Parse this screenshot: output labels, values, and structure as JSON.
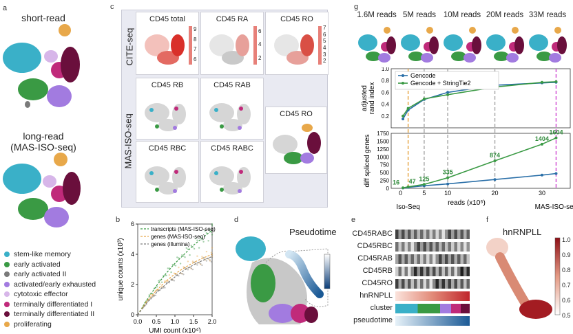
{
  "panels": {
    "a": "a",
    "b": "b",
    "c": "c",
    "d": "d",
    "e": "e",
    "f": "f",
    "g": "g"
  },
  "a": {
    "title_short": "short-read",
    "title_long_1": "long-read",
    "title_long_2": "(MAS-ISO-seq)",
    "legend": [
      {
        "label": "stem-like memory",
        "color": "#3ab0c8"
      },
      {
        "label": "early activated",
        "color": "#3a9a44"
      },
      {
        "label": "early activated II",
        "color": "#7a7a7a"
      },
      {
        "label": "activated/early exhausted",
        "color": "#a27be0"
      },
      {
        "label": "cytotoxic effector",
        "color": "#d7b6e9"
      },
      {
        "label": "terminally differentiated I",
        "color": "#c02a7a"
      },
      {
        "label": "terminally differentiated II",
        "color": "#6a0f3c"
      },
      {
        "label": "proliferating",
        "color": "#e8a84a"
      }
    ]
  },
  "c": {
    "cite_label": "CITE-seq",
    "mas_label": "MAS-ISO-seq",
    "cite": [
      {
        "title": "CD45 total",
        "ticks": [
          "9",
          "8",
          "7",
          "6"
        ]
      },
      {
        "title": "CD45 RA",
        "ticks": [
          "6",
          "4",
          "2"
        ]
      },
      {
        "title": "CD45 RO",
        "ticks": [
          "7",
          "6",
          "5",
          "4",
          "3",
          "2"
        ]
      }
    ],
    "mas": [
      "CD45 RB",
      "CD45 RAB",
      "CD45 RBC",
      "CD45 RABC"
    ],
    "mas_ro": "CD45 RO"
  },
  "b": {
    "legend": [
      "transcripts (MAS-ISO-seq)",
      "genes (MAS-ISO-seq)",
      "genes (illumina)"
    ],
    "xlabel": "UMI count (x10⁴)",
    "ylabel": "unique counts (x10³)"
  },
  "d": {
    "title": "Pseudotime"
  },
  "e": {
    "rows": [
      "CD45RABC",
      "CD45RBC",
      "CD45RAB",
      "CD45RB",
      "CD45RO",
      "hnRNPLL",
      "cluster",
      "pseudotime"
    ]
  },
  "f": {
    "title": "hnRNPLL",
    "ticks": [
      "1.0",
      "0.9",
      "0.8",
      "0.7",
      "0.6",
      "0.5"
    ]
  },
  "g": {
    "reads": [
      "1.6M reads",
      "5M reads",
      "10M reads",
      "20M reads",
      "33M reads"
    ],
    "legend": [
      "Gencode",
      "Gencode + StringTie2"
    ],
    "ylabel_top_1": "adjusted",
    "ylabel_top_2": "rand index",
    "ylabel_bottom": "diff spliced genes",
    "xlabel": "reads (x10⁶)",
    "iso_seq": "Iso-Seq",
    "mas_iso_seq": "MAS-ISO-seq"
  },
  "chart_data": [
    {
      "type": "line",
      "title": "",
      "xlabel": "UMI count (x10⁴)",
      "ylabel": "unique counts (x10³)",
      "xlim": [
        0,
        2.0
      ],
      "ylim": [
        0,
        6
      ],
      "x": [
        0,
        0.25,
        0.5,
        0.75,
        1.0,
        1.25,
        1.5,
        1.75,
        2.0
      ],
      "series": [
        {
          "name": "transcripts (MAS-ISO-seq)",
          "values": [
            0,
            1.0,
            1.9,
            2.7,
            3.4,
            4.0,
            4.6,
            5.1,
            5.6
          ]
        },
        {
          "name": "genes (MAS-ISO-seq)",
          "values": [
            0,
            0.9,
            1.6,
            2.2,
            2.7,
            3.1,
            3.45,
            3.75,
            4.0
          ]
        },
        {
          "name": "genes (illumina)",
          "values": [
            0,
            0.8,
            1.45,
            2.0,
            2.5,
            2.95,
            3.3,
            3.6,
            3.85
          ]
        }
      ],
      "xticks": [
        "0.0",
        "0.5",
        "1.0",
        "1.5",
        "2.0"
      ],
      "yticks": [
        "0",
        "2",
        "4",
        "6"
      ]
    },
    {
      "type": "line",
      "title": "adjusted rand index",
      "xlabel": "reads (x10⁶)",
      "ylabel": "adjusted rand index",
      "xlim": [
        -2,
        36
      ],
      "ylim": [
        0,
        1.0
      ],
      "x": [
        0.5,
        1.6,
        5,
        10,
        20,
        30,
        33
      ],
      "series": [
        {
          "name": "Gencode",
          "values": [
            0.15,
            0.3,
            0.48,
            0.6,
            0.72,
            0.76,
            0.77
          ]
        },
        {
          "name": "Gencode + StringTie2",
          "values": [
            0.2,
            0.33,
            0.49,
            0.56,
            0.69,
            0.77,
            0.78
          ]
        }
      ],
      "yticks": [
        "0.2",
        "0.4",
        "0.6",
        "0.8",
        "1.0"
      ]
    },
    {
      "type": "line",
      "title": "diff spliced genes",
      "xlabel": "reads (x10⁶)",
      "ylabel": "diff spliced genes",
      "xlim": [
        -2,
        36
      ],
      "ylim": [
        0,
        1750
      ],
      "x": [
        0.5,
        1.6,
        5,
        10,
        20,
        30,
        33
      ],
      "series": [
        {
          "name": "Gencode",
          "values": [
            10,
            30,
            80,
            140,
            280,
            420,
            470
          ]
        },
        {
          "name": "Gencode + StringTie2",
          "values": [
            16,
            47,
            125,
            335,
            874,
            1404,
            1604
          ]
        }
      ],
      "data_labels": [
        "16",
        "47",
        "125",
        "335",
        "874",
        "1404",
        "1604"
      ],
      "xticks": [
        "0",
        "5",
        "10",
        "20",
        "30"
      ],
      "yticks": [
        "0",
        "250",
        "500",
        "750",
        "1000",
        "1250",
        "1500",
        "1750"
      ]
    }
  ]
}
